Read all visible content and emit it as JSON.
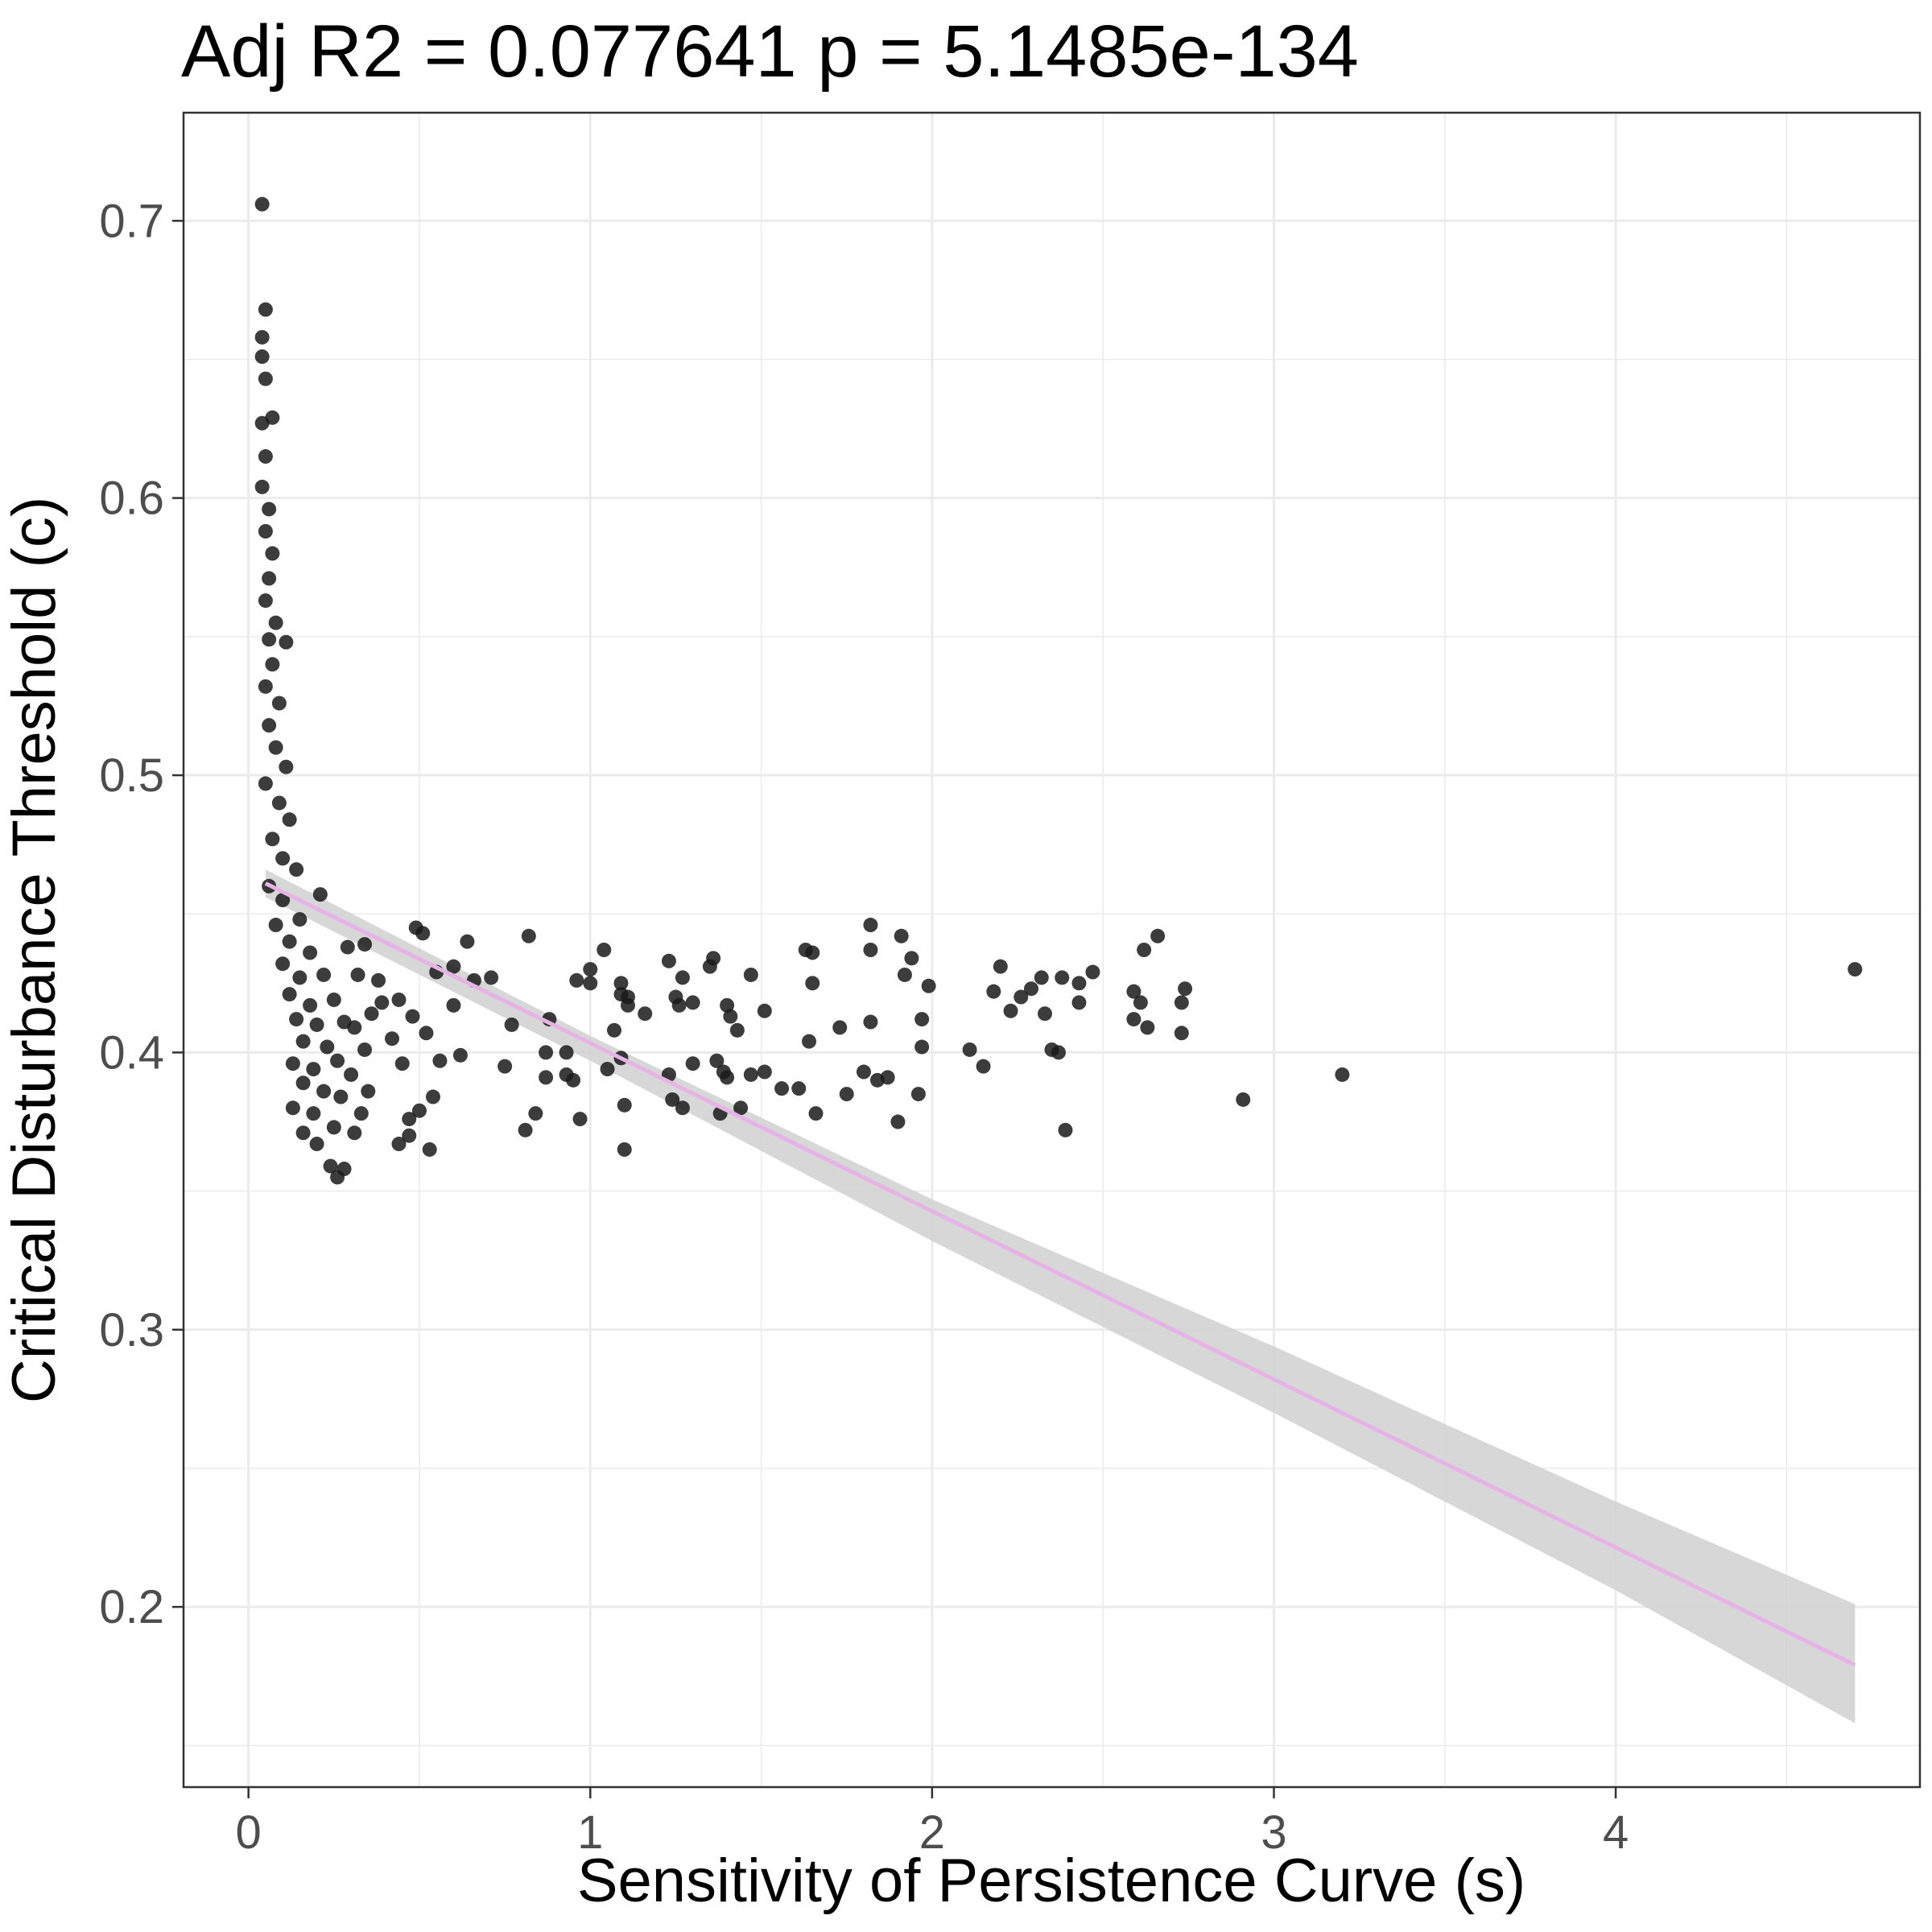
{
  "chart_data": {
    "type": "scatter",
    "title": "Adj R2 =  0.077641  p = 5.1485e-134",
    "xlabel": "Sensitivity of Persistence Curve (s)",
    "ylabel": "Critical Disturbance Threshold (c)",
    "xlim": [
      -0.19,
      4.89
    ],
    "ylim": [
      0.135,
      0.739
    ],
    "x_ticks": [
      0,
      1,
      2,
      3,
      4
    ],
    "x_tick_labels": [
      "0",
      "1",
      "2",
      "3",
      "4"
    ],
    "y_ticks": [
      0.2,
      0.3,
      0.4,
      0.5,
      0.6,
      0.7
    ],
    "y_tick_labels": [
      "0.2",
      "0.3",
      "0.4",
      "0.5",
      "0.6",
      "0.7"
    ],
    "grid": true,
    "point_color": "#1a1a1a",
    "fit_line": {
      "color": "#e6b3e6",
      "x": [
        0.05,
        4.7
      ],
      "y": [
        0.461,
        0.179
      ]
    },
    "confidence_band": {
      "color": "#d3d3d3",
      "x": [
        0.05,
        1.0,
        2.0,
        3.0,
        4.0,
        4.7
      ],
      "lower": [
        0.456,
        0.397,
        0.332,
        0.27,
        0.206,
        0.158
      ],
      "upper": [
        0.466,
        0.406,
        0.347,
        0.294,
        0.238,
        0.201
      ]
    },
    "series": [
      {
        "values": [
          [
            0.04,
            0.706
          ],
          [
            0.05,
            0.668
          ],
          [
            0.04,
            0.658
          ],
          [
            0.04,
            0.651
          ],
          [
            0.05,
            0.643
          ],
          [
            0.07,
            0.629
          ],
          [
            0.04,
            0.627
          ],
          [
            0.05,
            0.615
          ],
          [
            0.04,
            0.604
          ],
          [
            0.06,
            0.596
          ],
          [
            0.05,
            0.588
          ],
          [
            0.07,
            0.58
          ],
          [
            0.06,
            0.571
          ],
          [
            0.05,
            0.563
          ],
          [
            0.08,
            0.555
          ],
          [
            0.06,
            0.549
          ],
          [
            0.11,
            0.548
          ],
          [
            0.07,
            0.54
          ],
          [
            0.05,
            0.532
          ],
          [
            0.09,
            0.526
          ],
          [
            0.06,
            0.518
          ],
          [
            0.08,
            0.51
          ],
          [
            0.11,
            0.503
          ],
          [
            0.05,
            0.497
          ],
          [
            0.09,
            0.49
          ],
          [
            0.12,
            0.484
          ],
          [
            0.07,
            0.477
          ],
          [
            0.1,
            0.47
          ],
          [
            0.14,
            0.466
          ],
          [
            0.06,
            0.46
          ],
          [
            0.1,
            0.455
          ],
          [
            0.15,
            0.448
          ],
          [
            0.21,
            0.457
          ],
          [
            0.08,
            0.446
          ],
          [
            0.12,
            0.44
          ],
          [
            0.18,
            0.436
          ],
          [
            0.1,
            0.432
          ],
          [
            0.15,
            0.427
          ],
          [
            0.22,
            0.428
          ],
          [
            0.12,
            0.421
          ],
          [
            0.18,
            0.417
          ],
          [
            0.25,
            0.419
          ],
          [
            0.14,
            0.412
          ],
          [
            0.2,
            0.41
          ],
          [
            0.28,
            0.411
          ],
          [
            0.16,
            0.404
          ],
          [
            0.23,
            0.402
          ],
          [
            0.13,
            0.396
          ],
          [
            0.19,
            0.394
          ],
          [
            0.26,
            0.397
          ],
          [
            0.16,
            0.389
          ],
          [
            0.22,
            0.386
          ],
          [
            0.13,
            0.38
          ],
          [
            0.19,
            0.378
          ],
          [
            0.27,
            0.384
          ],
          [
            0.16,
            0.371
          ],
          [
            0.2,
            0.367
          ],
          [
            0.25,
            0.373
          ],
          [
            0.24,
            0.359
          ],
          [
            0.26,
            0.355
          ],
          [
            0.28,
            0.358
          ],
          [
            0.31,
            0.371
          ],
          [
            0.33,
            0.378
          ],
          [
            0.35,
            0.386
          ],
          [
            0.3,
            0.392
          ],
          [
            0.34,
            0.401
          ],
          [
            0.31,
            0.409
          ],
          [
            0.36,
            0.414
          ],
          [
            0.39,
            0.418
          ],
          [
            0.32,
            0.428
          ],
          [
            0.29,
            0.438
          ],
          [
            0.34,
            0.439
          ],
          [
            0.38,
            0.426
          ],
          [
            0.42,
            0.405
          ],
          [
            0.45,
            0.396
          ],
          [
            0.47,
            0.376
          ],
          [
            0.5,
            0.379
          ],
          [
            0.53,
            0.365
          ],
          [
            0.54,
            0.384
          ],
          [
            0.56,
            0.397
          ],
          [
            0.52,
            0.407
          ],
          [
            0.48,
            0.413
          ],
          [
            0.44,
            0.367
          ],
          [
            0.47,
            0.37
          ],
          [
            0.44,
            0.419
          ],
          [
            0.6,
            0.417
          ],
          [
            0.62,
            0.399
          ],
          [
            0.6,
            0.431
          ],
          [
            0.64,
            0.44
          ],
          [
            0.55,
            0.429
          ],
          [
            0.49,
            0.445
          ],
          [
            0.51,
            0.443
          ],
          [
            0.66,
            0.426
          ],
          [
            0.71,
            0.427
          ],
          [
            0.75,
            0.395
          ],
          [
            0.77,
            0.41
          ],
          [
            0.81,
            0.372
          ],
          [
            0.82,
            0.442
          ],
          [
            0.84,
            0.378
          ],
          [
            0.87,
            0.4
          ],
          [
            0.87,
            0.391
          ],
          [
            0.88,
            0.412
          ],
          [
            0.93,
            0.392
          ],
          [
            0.93,
            0.4
          ],
          [
            0.95,
            0.39
          ],
          [
            0.96,
            0.426
          ],
          [
            0.97,
            0.376
          ],
          [
            1.0,
            0.425
          ],
          [
            1.0,
            0.43
          ],
          [
            1.04,
            0.437
          ],
          [
            1.05,
            0.394
          ],
          [
            1.07,
            0.408
          ],
          [
            1.09,
            0.425
          ],
          [
            1.09,
            0.421
          ],
          [
            1.1,
            0.381
          ],
          [
            1.1,
            0.365
          ],
          [
            1.11,
            0.417
          ],
          [
            1.11,
            0.42
          ],
          [
            1.09,
            0.398
          ],
          [
            1.16,
            0.414
          ],
          [
            1.23,
            0.433
          ],
          [
            1.23,
            0.392
          ],
          [
            1.24,
            0.383
          ],
          [
            1.25,
            0.42
          ],
          [
            1.26,
            0.417
          ],
          [
            1.27,
            0.38
          ],
          [
            1.27,
            0.427
          ],
          [
            1.3,
            0.418
          ],
          [
            1.3,
            0.396
          ],
          [
            1.35,
            0.431
          ],
          [
            1.36,
            0.434
          ],
          [
            1.37,
            0.397
          ],
          [
            1.38,
            0.378
          ],
          [
            1.39,
            0.393
          ],
          [
            1.4,
            0.391
          ],
          [
            1.4,
            0.417
          ],
          [
            1.41,
            0.413
          ],
          [
            1.43,
            0.408
          ],
          [
            1.44,
            0.38
          ],
          [
            1.47,
            0.428
          ],
          [
            1.47,
            0.392
          ],
          [
            1.51,
            0.393
          ],
          [
            1.51,
            0.415
          ],
          [
            1.56,
            0.387
          ],
          [
            1.61,
            0.387
          ],
          [
            1.63,
            0.437
          ],
          [
            1.64,
            0.404
          ],
          [
            1.65,
            0.425
          ],
          [
            1.65,
            0.436
          ],
          [
            1.66,
            0.378
          ],
          [
            1.73,
            0.409
          ],
          [
            1.75,
            0.385
          ],
          [
            1.8,
            0.393
          ],
          [
            1.82,
            0.411
          ],
          [
            1.82,
            0.446
          ],
          [
            1.82,
            0.437
          ],
          [
            1.84,
            0.39
          ],
          [
            1.87,
            0.391
          ],
          [
            1.9,
            0.375
          ],
          [
            1.91,
            0.442
          ],
          [
            1.92,
            0.428
          ],
          [
            1.94,
            0.434
          ],
          [
            1.96,
            0.385
          ],
          [
            1.97,
            0.402
          ],
          [
            1.97,
            0.412
          ],
          [
            1.99,
            0.424
          ],
          [
            2.11,
            0.401
          ],
          [
            2.15,
            0.395
          ],
          [
            2.18,
            0.422
          ],
          [
            2.2,
            0.431
          ],
          [
            2.23,
            0.415
          ],
          [
            2.26,
            0.42
          ],
          [
            2.29,
            0.423
          ],
          [
            2.32,
            0.427
          ],
          [
            2.33,
            0.414
          ],
          [
            2.35,
            0.401
          ],
          [
            2.37,
            0.4
          ],
          [
            2.38,
            0.427
          ],
          [
            2.39,
            0.372
          ],
          [
            2.43,
            0.418
          ],
          [
            2.43,
            0.425
          ],
          [
            2.47,
            0.429
          ],
          [
            2.59,
            0.422
          ],
          [
            2.59,
            0.412
          ],
          [
            2.61,
            0.418
          ],
          [
            2.62,
            0.437
          ],
          [
            2.63,
            0.409
          ],
          [
            2.66,
            0.442
          ],
          [
            2.73,
            0.407
          ],
          [
            2.73,
            0.418
          ],
          [
            2.74,
            0.423
          ],
          [
            2.91,
            0.383
          ],
          [
            3.2,
            0.392
          ],
          [
            4.7,
            0.43
          ]
        ]
      }
    ]
  }
}
